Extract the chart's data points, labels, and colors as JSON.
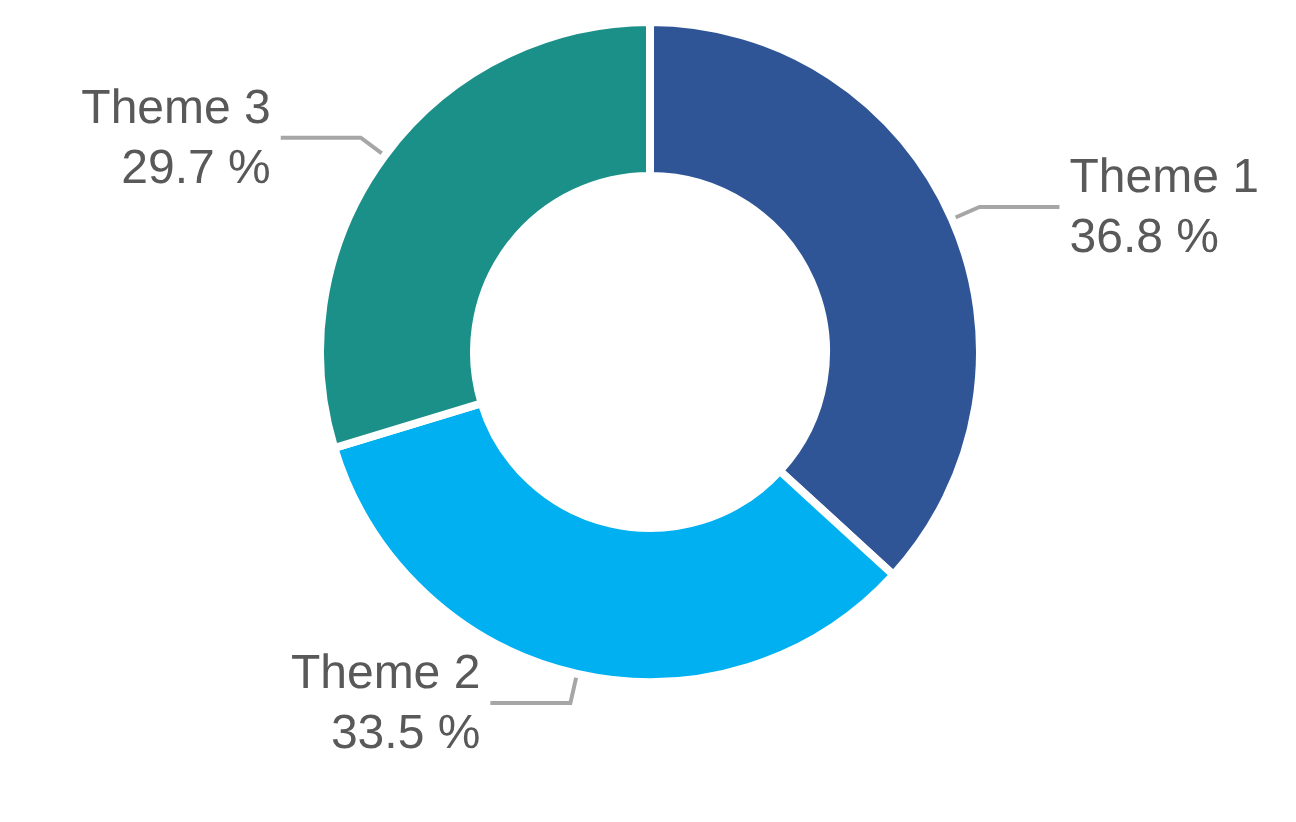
{
  "chart_data": {
    "type": "donut",
    "categories": [
      "Theme 1",
      "Theme 2",
      "Theme 3"
    ],
    "values": [
      36.8,
      33.5,
      29.7
    ],
    "value_labels": [
      "36.8 %",
      "33.5 %",
      "29.7 %"
    ],
    "colors": [
      "#2f5597",
      "#00b0f0",
      "#1b9089"
    ],
    "legend": false
  }
}
